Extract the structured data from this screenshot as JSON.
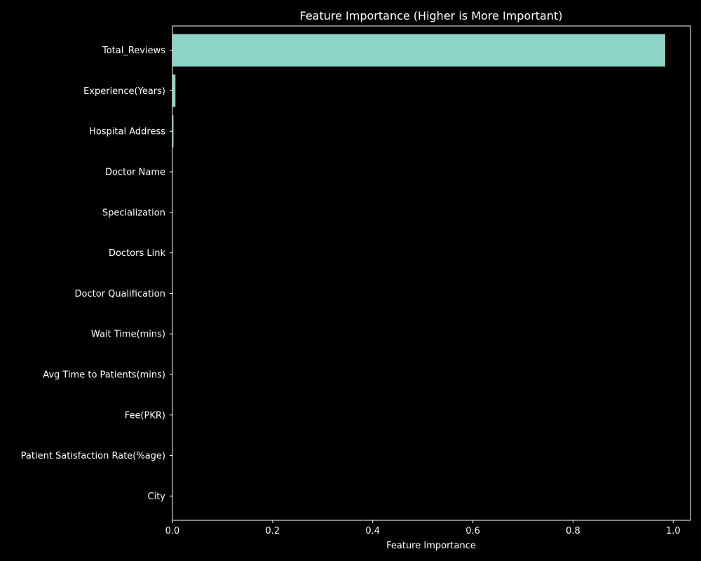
{
  "chart_data": {
    "type": "bar",
    "orientation": "horizontal",
    "title": "Feature Importance (Higher is More Important)",
    "xlabel": "Feature Importance",
    "ylabel": "",
    "xlim": [
      0,
      1.0
    ],
    "xticks": [
      0.0,
      0.2,
      0.4,
      0.6,
      0.8,
      1.0
    ],
    "xtick_labels": [
      "0.0",
      "0.2",
      "0.4",
      "0.6",
      "0.8",
      "1.0"
    ],
    "grid": false,
    "categories": [
      "Total_Reviews",
      "Experience(Years)",
      "Hospital Address",
      "Doctor Name",
      "Specialization",
      "Doctors Link",
      "Doctor Qualification",
      "Wait Time(mins)",
      "Avg Time to Patients(mins)",
      "Fee(PKR)",
      "Patient Satisfaction Rate(%age)",
      "City"
    ],
    "values": [
      0.984,
      0.006,
      0.002,
      0.0,
      0.0,
      0.0,
      0.0,
      0.0,
      0.0,
      0.0,
      0.0,
      0.0
    ],
    "colors": {
      "background": "#000000",
      "bar": "#8dd3c7",
      "axis": "#ffffff",
      "text": "#ffffff"
    }
  }
}
